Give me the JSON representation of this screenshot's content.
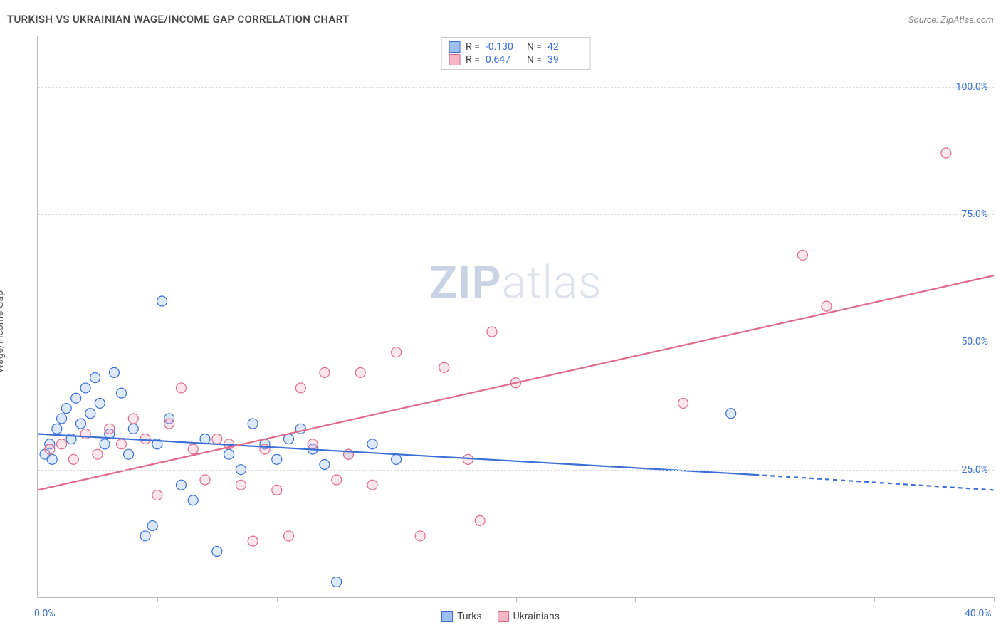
{
  "header": {
    "title": "TURKISH VS UKRAINIAN WAGE/INCOME GAP CORRELATION CHART",
    "source": "Source: ZipAtlas.com"
  },
  "watermark": {
    "zip": "ZIP",
    "atlas": "atlas"
  },
  "chart": {
    "type": "scatter",
    "ylabel": "Wage/Income Gap",
    "xlim": [
      0,
      40
    ],
    "ylim": [
      0,
      110
    ],
    "xtick_positions": [
      0,
      5,
      10,
      15,
      20,
      25,
      30,
      35,
      40
    ],
    "xtick_labels": {
      "0": "0.0%",
      "40": "40.0%"
    },
    "ytick_positions": [
      25,
      50,
      75,
      100
    ],
    "ytick_labels": [
      "25.0%",
      "50.0%",
      "75.0%",
      "100.0%"
    ],
    "background_color": "#ffffff",
    "grid_color": "#dddddd",
    "axis_color": "#bbbbbb",
    "tick_label_color": "#3b6fd6",
    "marker_radius": 7,
    "marker_stroke_width": 1.2,
    "marker_fill_opacity": 0.35,
    "line_width": 2.2,
    "series": [
      {
        "name": "Turks",
        "color_stroke": "#3b6fd6",
        "color_fill": "#9fc0ef",
        "R": "-0.130",
        "N": "42",
        "trend": {
          "x1": 0,
          "y1": 32,
          "x2": 30,
          "y2": 24,
          "x2_ext": 40,
          "y2_ext": 21
        },
        "points": [
          [
            0.3,
            28
          ],
          [
            0.5,
            30
          ],
          [
            0.6,
            27
          ],
          [
            0.8,
            33
          ],
          [
            1.0,
            35
          ],
          [
            1.2,
            37
          ],
          [
            1.4,
            31
          ],
          [
            1.6,
            39
          ],
          [
            1.8,
            34
          ],
          [
            2.0,
            41
          ],
          [
            2.2,
            36
          ],
          [
            2.4,
            43
          ],
          [
            2.6,
            38
          ],
          [
            2.8,
            30
          ],
          [
            3.0,
            32
          ],
          [
            3.2,
            44
          ],
          [
            3.5,
            40
          ],
          [
            3.8,
            28
          ],
          [
            4.0,
            33
          ],
          [
            4.5,
            12
          ],
          [
            4.8,
            14
          ],
          [
            5.0,
            30
          ],
          [
            5.2,
            58
          ],
          [
            5.5,
            35
          ],
          [
            6.0,
            22
          ],
          [
            6.5,
            19
          ],
          [
            7.0,
            31
          ],
          [
            7.5,
            9
          ],
          [
            8.0,
            28
          ],
          [
            8.5,
            25
          ],
          [
            9.0,
            34
          ],
          [
            9.5,
            30
          ],
          [
            10.0,
            27
          ],
          [
            10.5,
            31
          ],
          [
            11.0,
            33
          ],
          [
            11.5,
            29
          ],
          [
            12.0,
            26
          ],
          [
            12.5,
            3
          ],
          [
            13.0,
            28
          ],
          [
            14.0,
            30
          ],
          [
            15.0,
            27
          ],
          [
            29.0,
            36
          ]
        ]
      },
      {
        "name": "Ukrainians",
        "color_stroke": "#e06a8a",
        "color_fill": "#f3b7c8",
        "R": "0.647",
        "N": "39",
        "trend": {
          "x1": 0,
          "y1": 21,
          "x2": 40,
          "y2": 63,
          "x2_ext": 40,
          "y2_ext": 63
        },
        "points": [
          [
            0.5,
            29
          ],
          [
            1.0,
            30
          ],
          [
            1.5,
            27
          ],
          [
            2.0,
            32
          ],
          [
            2.5,
            28
          ],
          [
            3.0,
            33
          ],
          [
            3.5,
            30
          ],
          [
            4.0,
            35
          ],
          [
            4.5,
            31
          ],
          [
            5.0,
            20
          ],
          [
            5.5,
            34
          ],
          [
            6.0,
            41
          ],
          [
            6.5,
            29
          ],
          [
            7.0,
            23
          ],
          [
            7.5,
            31
          ],
          [
            8.0,
            30
          ],
          [
            8.5,
            22
          ],
          [
            9.0,
            11
          ],
          [
            9.5,
            29
          ],
          [
            10.0,
            21
          ],
          [
            10.5,
            12
          ],
          [
            11.0,
            41
          ],
          [
            11.5,
            30
          ],
          [
            12.0,
            44
          ],
          [
            12.5,
            23
          ],
          [
            13.0,
            28
          ],
          [
            13.5,
            44
          ],
          [
            14.0,
            22
          ],
          [
            15.0,
            48
          ],
          [
            16.0,
            12
          ],
          [
            17.0,
            45
          ],
          [
            18.0,
            27
          ],
          [
            18.5,
            15
          ],
          [
            19.0,
            52
          ],
          [
            20.0,
            42
          ],
          [
            27.0,
            38
          ],
          [
            32.0,
            67
          ],
          [
            33.0,
            57
          ],
          [
            38.0,
            87
          ]
        ]
      }
    ]
  },
  "legend_bottom": [
    {
      "label": "Turks",
      "stroke": "#3b6fd6",
      "fill": "#9fc0ef"
    },
    {
      "label": "Ukrainians",
      "stroke": "#e06a8a",
      "fill": "#f3b7c8"
    }
  ]
}
